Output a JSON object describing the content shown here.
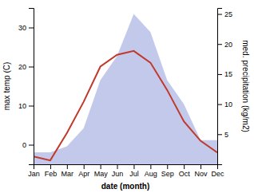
{
  "chart_data": {
    "type": "line",
    "xlabel": "date (month)",
    "ylabel": "max temp (C)",
    "y2label": "med. precipitation (kg/m2)",
    "categories": [
      "Jan",
      "Feb",
      "Mar",
      "Apr",
      "May",
      "Jun",
      "Jul",
      "Aug",
      "Sep",
      "Oct",
      "Nov",
      "Dec"
    ],
    "series": [
      {
        "type": "area",
        "axis": "y2",
        "color": "#b8bfe8",
        "values": [
          2,
          2,
          3,
          6,
          14,
          18,
          25,
          22,
          14,
          10,
          4,
          4
        ]
      },
      {
        "type": "line",
        "color": "#c0392b",
        "values": [
          -3,
          -4,
          3,
          11,
          20,
          23,
          24,
          21,
          14,
          6,
          1,
          -2
        ]
      }
    ],
    "ylim": [
      -5,
      35
    ],
    "yticks": [
      0,
      10,
      20,
      30
    ],
    "y2lim": [
      0,
      26
    ],
    "y2ticks": [
      5,
      10,
      15,
      20,
      25
    ]
  }
}
